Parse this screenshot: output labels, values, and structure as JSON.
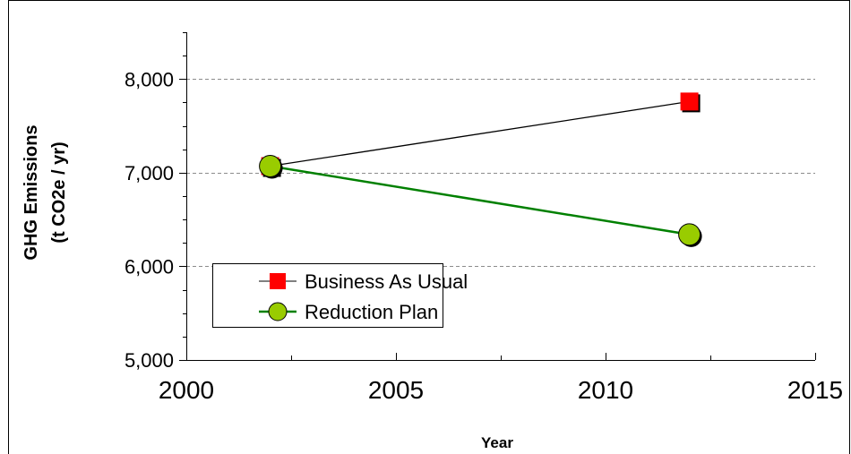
{
  "chart_data": {
    "type": "line",
    "title": "",
    "xlabel": "Year",
    "ylabel_line1": "GHG Emissions",
    "ylabel_line2": "(t CO2e / yr)",
    "xlim": [
      2000,
      2015
    ],
    "ylim": [
      5000,
      8500
    ],
    "x_ticks": [
      2000,
      2005,
      2010,
      2015
    ],
    "x_tick_labels": [
      "2000",
      "2005",
      "2010",
      "2015"
    ],
    "y_ticks": [
      5000,
      6000,
      7000,
      8000
    ],
    "y_tick_labels": [
      "5,000",
      "6,000",
      "7,000",
      "8,000"
    ],
    "grid": "horizontal dashed",
    "legend_position": "bottom-left",
    "series": [
      {
        "name": "Business As Usual",
        "color": "#ff0000",
        "line_color": "#000000",
        "marker": "square",
        "x": [
          2002,
          2012
        ],
        "y": [
          7070,
          7760
        ]
      },
      {
        "name": "Reduction Plan",
        "color": "#99cc00",
        "line_color": "#008000",
        "marker": "circle",
        "x": [
          2002,
          2012
        ],
        "y": [
          7070,
          6340
        ]
      }
    ]
  }
}
